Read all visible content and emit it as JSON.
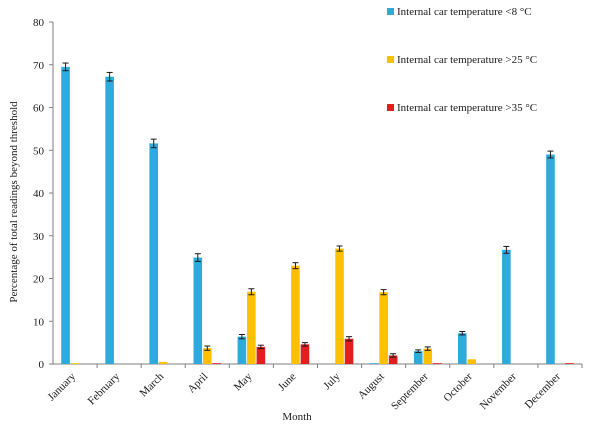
{
  "chart_data": {
    "type": "bar",
    "title": "",
    "xlabel": "Month",
    "ylabel": "Percentage of total readings beyond threshold",
    "ylim": [
      0,
      80
    ],
    "yticks": [
      0,
      10,
      20,
      30,
      40,
      50,
      60,
      70,
      80
    ],
    "grid": false,
    "legend_position": "top-right",
    "error_bars": true,
    "categories": [
      "January",
      "February",
      "March",
      "April",
      "May",
      "June",
      "July",
      "August",
      "September",
      "October",
      "November",
      "December"
    ],
    "series": [
      {
        "name": "Internal car temperature <8 °C",
        "color": "#2eaadc",
        "values": [
          69.5,
          67.2,
          51.6,
          24.9,
          6.4,
          0,
          0,
          0.2,
          3.0,
          7.2,
          26.7,
          49.0
        ],
        "errors": [
          0.9,
          1.0,
          1.0,
          0.9,
          0.5,
          0,
          0,
          0,
          0.3,
          0.4,
          0.8,
          0.8
        ]
      },
      {
        "name": "Internal car temperature >25 °C",
        "color": "#ffc000",
        "values": [
          0.2,
          0,
          0.5,
          3.7,
          16.9,
          23.0,
          27.0,
          16.8,
          3.6,
          1.1,
          0,
          0
        ],
        "errors": [
          0,
          0,
          0,
          0.5,
          0.7,
          0.7,
          0.6,
          0.6,
          0.4,
          0,
          0,
          0
        ]
      },
      {
        "name": "Internal car temperature >35 °C",
        "color": "#e0201f",
        "values": [
          0,
          0,
          0,
          0.2,
          4.0,
          4.6,
          5.9,
          2.0,
          0.2,
          0,
          0,
          0.2
        ],
        "errors": [
          0,
          0,
          0,
          0,
          0.4,
          0.4,
          0.5,
          0.4,
          0,
          0,
          0,
          0
        ]
      }
    ]
  }
}
